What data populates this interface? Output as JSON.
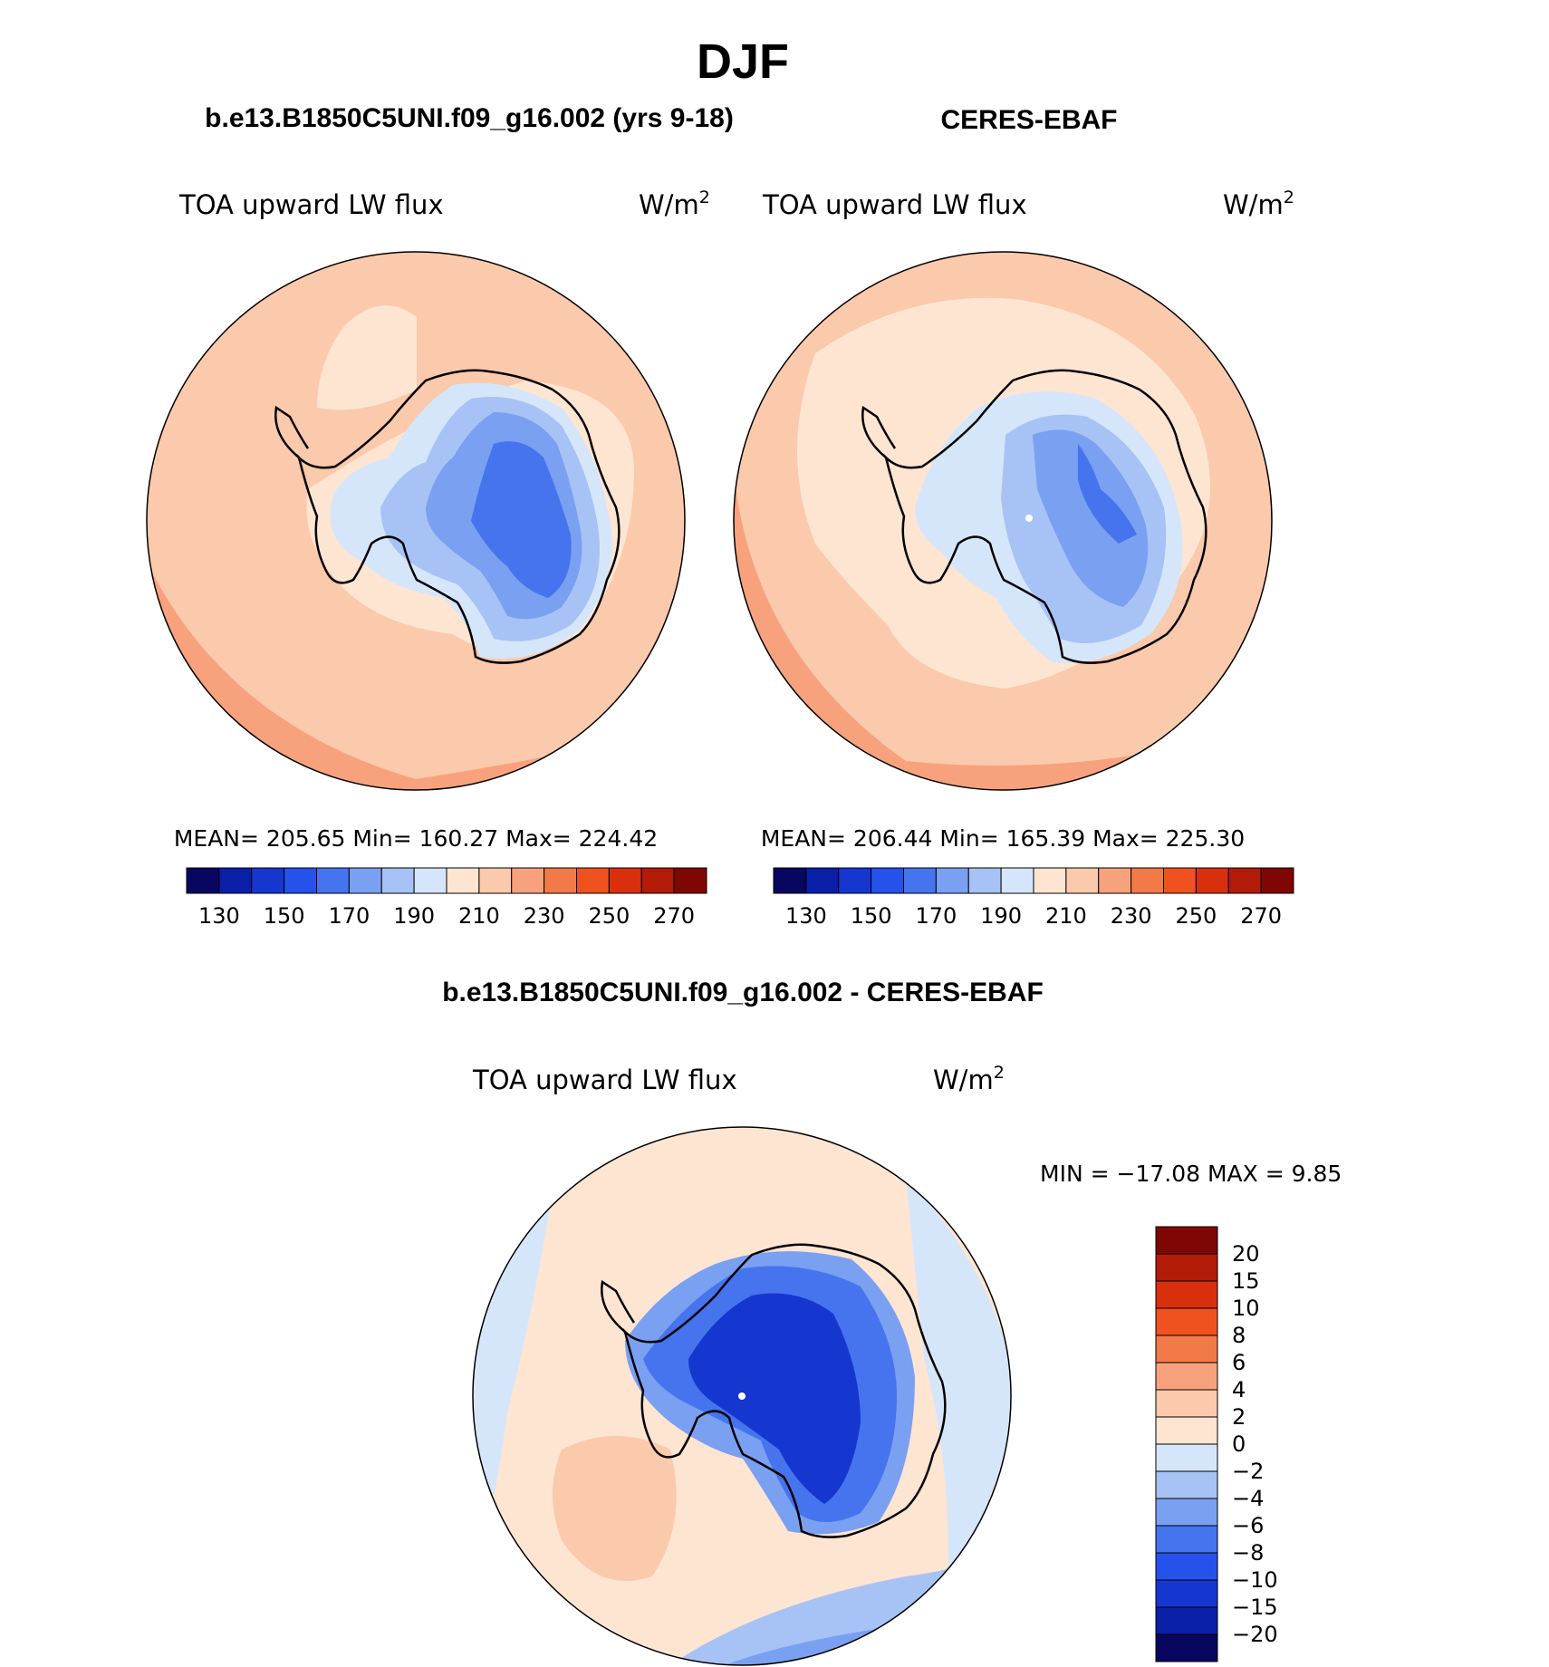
{
  "main_title": "DJF",
  "chart_data": [
    {
      "type": "map",
      "projection": "south-polar-stereographic",
      "title": "b.e13.B1850C5UNI.f09_g16.002 (yrs 9-18)",
      "field": "TOA upward LW flux",
      "units": "W/m",
      "units_exp": "2",
      "stats": {
        "mean_label": "MEAN=",
        "mean": "205.65",
        "min_label": "Min=",
        "min": "160.27",
        "max_label": "Max=",
        "max": "224.42"
      },
      "colorbar": {
        "orientation": "horizontal",
        "levels": [
          130,
          140,
          150,
          160,
          170,
          180,
          190,
          200,
          210,
          220,
          230,
          240,
          250,
          260,
          270
        ],
        "tick_labels": [
          "130",
          "150",
          "170",
          "190",
          "210",
          "230",
          "250",
          "270"
        ],
        "colors": [
          "#08065f",
          "#0a1fa8",
          "#1537d0",
          "#2452ea",
          "#4574ee",
          "#7aa0f2",
          "#a7c3f5",
          "#d6e6fa",
          "#fde5d2",
          "#fbc9ac",
          "#f7a27c",
          "#f27a48",
          "#f0521f",
          "#d8300d",
          "#b21b08",
          "#7e0605"
        ]
      }
    },
    {
      "type": "map",
      "projection": "south-polar-stereographic",
      "title": "CERES-EBAF",
      "field": "TOA upward LW flux",
      "units": "W/m",
      "units_exp": "2",
      "stats": {
        "mean_label": "MEAN=",
        "mean": "206.44",
        "min_label": "Min=",
        "min": "165.39",
        "max_label": "Max=",
        "max": "225.30"
      },
      "colorbar": {
        "orientation": "horizontal",
        "levels": [
          130,
          140,
          150,
          160,
          170,
          180,
          190,
          200,
          210,
          220,
          230,
          240,
          250,
          260,
          270
        ],
        "tick_labels": [
          "130",
          "150",
          "170",
          "190",
          "210",
          "230",
          "250",
          "270"
        ],
        "colors": [
          "#08065f",
          "#0a1fa8",
          "#1537d0",
          "#2452ea",
          "#4574ee",
          "#7aa0f2",
          "#a7c3f5",
          "#d6e6fa",
          "#fde5d2",
          "#fbc9ac",
          "#f7a27c",
          "#f27a48",
          "#f0521f",
          "#d8300d",
          "#b21b08",
          "#7e0605"
        ]
      }
    },
    {
      "type": "map",
      "projection": "south-polar-stereographic",
      "title": "b.e13.B1850C5UNI.f09_g16.002 - CERES-EBAF",
      "field": "TOA upward LW flux",
      "units": "W/m",
      "units_exp": "2",
      "stats": {
        "min_label": "MIN =",
        "min": "−17.08",
        "max_label": "MAX =",
        "max": "9.85"
      },
      "colorbar": {
        "orientation": "vertical",
        "levels": [
          20,
          15,
          10,
          8,
          6,
          4,
          2,
          0,
          -2,
          -4,
          -6,
          -8,
          -10,
          -15,
          -20
        ],
        "tick_labels": [
          "20",
          "15",
          "10",
          "8",
          "6",
          "4",
          "2",
          "0",
          "−2",
          "−4",
          "−6",
          "−8",
          "−10",
          "−15",
          "−20"
        ],
        "colors": [
          "#7e0605",
          "#b21b08",
          "#d8300d",
          "#f0521f",
          "#f27a48",
          "#f7a27c",
          "#fbc9ac",
          "#fde5d2",
          "#d6e6fa",
          "#a7c3f5",
          "#7aa0f2",
          "#4574ee",
          "#2452ea",
          "#1537d0",
          "#0a1fa8",
          "#08065f"
        ]
      }
    }
  ]
}
